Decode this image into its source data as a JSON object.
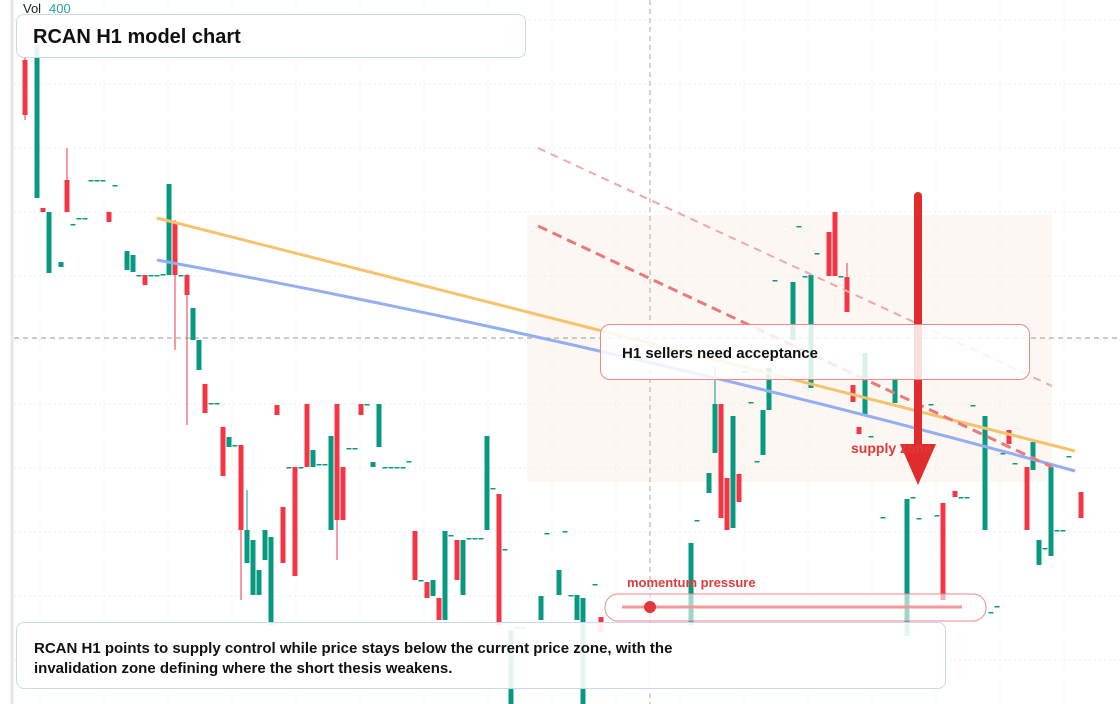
{
  "chart_data": {
    "type": "candlestick",
    "title": "RCAN H1 model chart",
    "volume_label": "Vol",
    "volume_value": 400,
    "up_color": "#089981",
    "down_color": "#f23645",
    "ylim": [
      0,
      704
    ],
    "grid": true,
    "callout": "H1 sellers need acceptance",
    "zone_label": "supply zone",
    "momentum_label": "momentum pressure",
    "summary": "RCAN H1 points to supply control while price stays below the current price zone, with the invalidation zone defining where the short thesis weakens.",
    "ohlc": [
      [
        644,
        649,
        584,
        589
      ],
      null,
      [
        506,
        659,
        506,
        659
      ],
      [
        496,
        496,
        492,
        492
      ],
      [
        431,
        492,
        431,
        492
      ],
      null,
      [
        437,
        442,
        437,
        442
      ],
      [
        524,
        556,
        492,
        492
      ],
      [
        480,
        480,
        480,
        480
      ],
      [
        486,
        486,
        486,
        486
      ],
      [
        486,
        486,
        486,
        486
      ],
      [
        524,
        524,
        524,
        524
      ],
      [
        524,
        524,
        524,
        524
      ],
      [
        524,
        524,
        524,
        524
      ],
      [
        492,
        492,
        482,
        482
      ],
      [
        519,
        519,
        519,
        519
      ],
      null,
      [
        434,
        453,
        434,
        453
      ],
      [
        432,
        449,
        432,
        449
      ],
      [
        429,
        429,
        429,
        429
      ],
      [
        429,
        429,
        419,
        419
      ],
      [
        429,
        429,
        429,
        429
      ],
      [
        429,
        429,
        429,
        429
      ],
      [
        430,
        430,
        430,
        430
      ],
      [
        429,
        520,
        429,
        520
      ],
      [
        482,
        484,
        354,
        429
      ],
      [
        429,
        429,
        429,
        429
      ],
      [
        429,
        430,
        279,
        409
      ],
      [
        364,
        396,
        364,
        396
      ],
      [
        334,
        364,
        334,
        364
      ],
      [
        320,
        320,
        291,
        291
      ],
      [
        301,
        301,
        301,
        301
      ],
      [
        301,
        301,
        301,
        301
      ],
      [
        277,
        277,
        228,
        228
      ],
      [
        257,
        267,
        257,
        267
      ],
      [
        259,
        259,
        259,
        259
      ],
      [
        259,
        259,
        104,
        174
      ],
      [
        141,
        214,
        141,
        174
      ],
      [
        109,
        164,
        109,
        164
      ],
      [
        109,
        134,
        109,
        134
      ],
      [
        144,
        174,
        144,
        174
      ],
      [
        79,
        167,
        79,
        167
      ],
      [
        299,
        299,
        289,
        289
      ],
      [
        197,
        197,
        141,
        141
      ],
      [
        237,
        237,
        237,
        237
      ],
      [
        237,
        237,
        128,
        128
      ],
      [
        237,
        237,
        237,
        237
      ],
      [
        300,
        300,
        237,
        237
      ],
      [
        237,
        254,
        237,
        254
      ],
      [
        240,
        240,
        240,
        240
      ],
      [
        240,
        240,
        240,
        240
      ],
      [
        174,
        268,
        174,
        268
      ],
      [
        300,
        300,
        144,
        184
      ],
      [
        237,
        237,
        184,
        184
      ],
      [
        256,
        256,
        256,
        256
      ],
      [
        256,
        256,
        256,
        256
      ],
      [
        300,
        300,
        289,
        289
      ],
      [
        300,
        300,
        300,
        300
      ],
      [
        237,
        242,
        237,
        242
      ],
      [
        257,
        300,
        257,
        300
      ],
      [
        237,
        237,
        237,
        237
      ],
      [
        237,
        237,
        237,
        237
      ],
      [
        237,
        237,
        237,
        237
      ],
      [
        237,
        237,
        237,
        237
      ],
      [
        243,
        243,
        243,
        243
      ],
      [
        173,
        173,
        124,
        124
      ],
      [
        124,
        124,
        124,
        124
      ],
      [
        122,
        122,
        106,
        106
      ],
      [
        108,
        124,
        108,
        124
      ],
      [
        106,
        106,
        84,
        84
      ],
      [
        84,
        173,
        84,
        173
      ],
      [
        169,
        169,
        169,
        169
      ],
      [
        164,
        164,
        124,
        124
      ],
      [
        109,
        164,
        109,
        164
      ],
      [
        166,
        166,
        166,
        166
      ],
      [
        166,
        166,
        166,
        166
      ],
      [
        166,
        166,
        166,
        166
      ],
      [
        174,
        268,
        174,
        268
      ],
      [
        216,
        216,
        216,
        216
      ],
      [
        210,
        210,
        79,
        79
      ],
      [
        155,
        155,
        155,
        155
      ],
      [
        0,
        74,
        0,
        74
      ],
      [
        77,
        77,
        77,
        77
      ],
      [
        77,
        77,
        77,
        77
      ],
      null,
      null,
      [
        84,
        108,
        84,
        108
      ],
      [
        171,
        171,
        171,
        171
      ],
      null,
      [
        109,
        134,
        109,
        134
      ],
      [
        173,
        173,
        173,
        173
      ],
      [
        109,
        109,
        109,
        109
      ],
      [
        84,
        109,
        84,
        109
      ],
      [
        0,
        106,
        0,
        106
      ],
      null,
      [
        120,
        120,
        120,
        120
      ],
      [
        87,
        87,
        72,
        72
      ],
      null,
      null,
      null,
      null,
      null,
      null,
      null,
      null,
      null,
      null,
      null,
      null,
      null,
      null,
      [
        79,
        161,
        79,
        161
      ],
      [
        184,
        184,
        184,
        184
      ],
      null,
      [
        211,
        231,
        211,
        231
      ],
      [
        251,
        337,
        251,
        300
      ],
      [
        300,
        300,
        186,
        186
      ],
      [
        226,
        226,
        174,
        174
      ],
      [
        176,
        288,
        176,
        288
      ],
      [
        230,
        230,
        202,
        202
      ],
      [
        333,
        333,
        333,
        333
      ],
      [
        302,
        302,
        302,
        302
      ],
      [
        243,
        243,
        243,
        243
      ],
      [
        249,
        294,
        249,
        294
      ],
      [
        294,
        336,
        294,
        336
      ],
      [
        424,
        424,
        424,
        424
      ],
      null,
      null,
      [
        364,
        422,
        364,
        422
      ],
      [
        478,
        478,
        478,
        478
      ],
      [
        428,
        428,
        428,
        428
      ],
      [
        316,
        429,
        316,
        429
      ],
      [
        451,
        451,
        451,
        451
      ],
      null,
      [
        472,
        472,
        428,
        428
      ],
      [
        492,
        492,
        428,
        428
      ],
      [
        428,
        428,
        428,
        428
      ],
      [
        427,
        441,
        392,
        392
      ],
      [
        319,
        319,
        302,
        302
      ],
      [
        277,
        277,
        270,
        270
      ],
      [
        289,
        351,
        289,
        351
      ],
      [
        268,
        268,
        268,
        268
      ],
      null,
      [
        187,
        187,
        187,
        187
      ],
      null,
      [
        301,
        326,
        301,
        326
      ],
      null,
      [
        68,
        205,
        68,
        205
      ],
      [
        207,
        207,
        207,
        207
      ],
      [
        186,
        186,
        186,
        186
      ],
      null,
      [
        300,
        300,
        300,
        300
      ],
      [
        189,
        189,
        189,
        189
      ],
      [
        201,
        201,
        104,
        104
      ],
      null,
      [
        213,
        213,
        207,
        207
      ],
      [
        207,
        207,
        207,
        207
      ],
      [
        207,
        207,
        207,
        207
      ],
      [
        299,
        299,
        299,
        299
      ],
      null,
      [
        174,
        288,
        174,
        288
      ],
      [
        92,
        92,
        92,
        92
      ],
      [
        98,
        98,
        98,
        98
      ],
      [
        251,
        251,
        251,
        251
      ],
      [
        274,
        274,
        260,
        260
      ],
      [
        241,
        241,
        241,
        241
      ],
      null,
      [
        237,
        237,
        174,
        174
      ],
      [
        234,
        262,
        234,
        262
      ],
      [
        139,
        164,
        139,
        164
      ],
      [
        156,
        156,
        156,
        156
      ],
      [
        148,
        237,
        148,
        237
      ],
      [
        174,
        174,
        174,
        174
      ],
      [
        174,
        174,
        174,
        174
      ],
      [
        248,
        248,
        248,
        248
      ],
      null,
      [
        212,
        212,
        186,
        186
      ]
    ]
  }
}
